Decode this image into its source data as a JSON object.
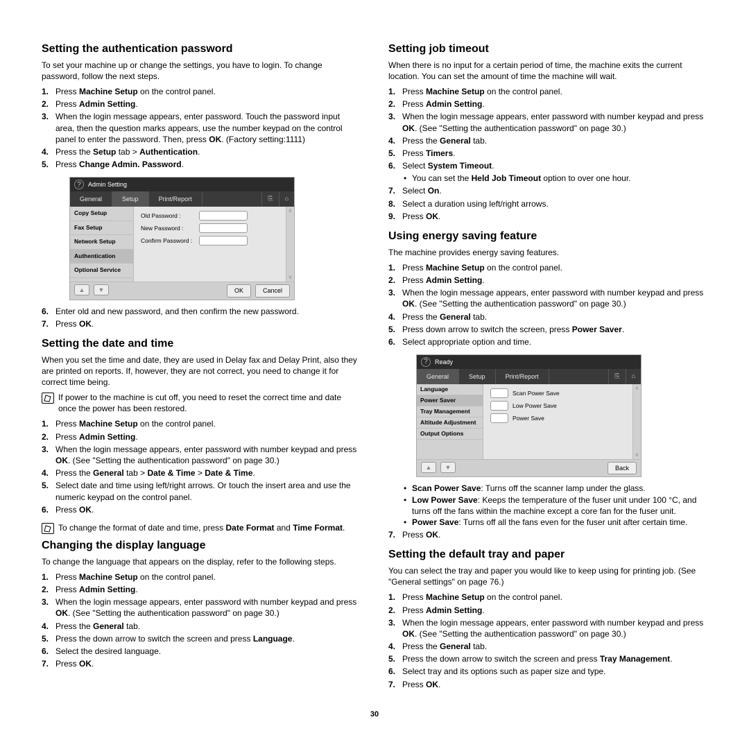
{
  "pageNumber": "30",
  "left": {
    "s1": {
      "title": "Setting the authentication password",
      "intro": "To set your machine up or change the settings, you have to login. To change password, follow the next steps.",
      "items": [
        {
          "n": "1.",
          "html": "Press <b>Machine Setup</b> on the control panel."
        },
        {
          "n": "2.",
          "html": "Press <b>Admin Setting</b>."
        },
        {
          "n": "3.",
          "html": "When the login message appears, enter password. Touch the password input area, then the question marks appears, use the number keypad on the control panel to enter the password. Then, press <b>OK</b>. (Factory setting:1111)"
        },
        {
          "n": "4.",
          "html": "Press the <b>Setup</b> tab > <b>Authentication</b>."
        },
        {
          "n": "5.",
          "html": "Press <b>Change Admin. Password</b>."
        }
      ],
      "after": [
        {
          "n": "6.",
          "html": "Enter old and new password, and then confirm the new password."
        },
        {
          "n": "7.",
          "html": "Press <b>OK</b>."
        }
      ]
    },
    "s2": {
      "title": "Setting the date and time",
      "intro": "When you set the time and date, they are used in Delay fax and Delay Print, also they are printed on reports. If, however, they are not correct, you need to change it for correct time being.",
      "note1": "If power to the machine is cut off, you need to reset the correct time and date once the power has been restored.",
      "items": [
        {
          "n": "1.",
          "html": "Press <b>Machine Setup</b> on the control panel."
        },
        {
          "n": "2.",
          "html": "Press <b>Admin Setting</b>."
        },
        {
          "n": "3.",
          "html": "When the login message appears, enter password with number keypad and press <b>OK</b>. (See \"Setting the authentication password\" on page 30.)"
        },
        {
          "n": "4.",
          "html": "Press the <b>General</b> tab > <b>Date & Time</b> > <b>Date & Time</b>."
        },
        {
          "n": "5.",
          "html": "Select date and time using left/right arrows. Or touch the insert area and use the numeric keypad on the control panel."
        },
        {
          "n": "6.",
          "html": "Press <b>OK</b>."
        }
      ],
      "note2": "To change the format of date and time, press <b>Date Format</b> and <b>Time Format</b>."
    },
    "s3": {
      "title": "Changing the display language",
      "intro": "To change the language that appears on the display, refer to the following steps.",
      "items": [
        {
          "n": "1.",
          "html": "Press <b>Machine Setup</b> on the control panel."
        },
        {
          "n": "2.",
          "html": "Press <b>Admin Setting</b>."
        },
        {
          "n": "3.",
          "html": "When the login message appears, enter password with number keypad and press <b>OK</b>. (See \"Setting the authentication password\" on page 30.)"
        },
        {
          "n": "4.",
          "html": "Press the <b>General</b> tab."
        },
        {
          "n": "5.",
          "html": "Press the down arrow to switch the screen and press <b>Language</b>."
        },
        {
          "n": "6.",
          "html": "Select the desired language."
        },
        {
          "n": "7.",
          "html": "Press <b>OK</b>."
        }
      ]
    }
  },
  "right": {
    "s1": {
      "title": "Setting job timeout",
      "intro": "When there is no input for a certain period of time, the machine exits the current location. You can set the amount of time the machine will wait.",
      "items": [
        {
          "n": "1.",
          "html": "Press <b>Machine Setup</b> on the control panel."
        },
        {
          "n": "2.",
          "html": "Press <b>Admin Setting</b>."
        },
        {
          "n": "3.",
          "html": "When the login message appears, enter password with number keypad and press <b>OK</b>. (See \"Setting the authentication password\" on page 30.)"
        },
        {
          "n": "4.",
          "html": "Press the <b>General</b> tab."
        },
        {
          "n": "5.",
          "html": "Press <b>Timers</b>."
        },
        {
          "n": "6.",
          "html": "Select <b>System Timeout</b>.",
          "sub": [
            "You can set the <b>Held Job Timeout</b> option to over one hour."
          ]
        },
        {
          "n": "7.",
          "html": "Select <b>On</b>."
        },
        {
          "n": "8.",
          "html": "Select a duration using left/right arrows."
        },
        {
          "n": "9.",
          "html": "Press <b>OK</b>."
        }
      ]
    },
    "s2": {
      "title": "Using energy saving feature",
      "intro": "The machine provides energy saving features.",
      "items": [
        {
          "n": "1.",
          "html": "Press <b>Machine Setup</b> on the control panel."
        },
        {
          "n": "2.",
          "html": "Press <b>Admin Setting</b>."
        },
        {
          "n": "3.",
          "html": "When the login message appears, enter password with number keypad and press <b>OK</b>. (See \"Setting the authentication password\" on page 30.)"
        },
        {
          "n": "4.",
          "html": "Press the <b>General</b> tab."
        },
        {
          "n": "5.",
          "html": "Press down arrow to switch the screen, press <b>Power Saver</b>."
        },
        {
          "n": "6.",
          "html": "Select appropriate option and time."
        }
      ],
      "bullets": [
        "<b>Scan Power Save</b>: Turns off the scanner lamp under the glass.",
        "<b>Low Power Save</b>: Keeps the temperature of the fuser unit under 100 °C, and turns off the fans within the machine except a core fan for the fuser unit.",
        "<b>Power Save</b>: Turns off all the fans even for the fuser unit after certain time."
      ],
      "after": [
        {
          "n": "7.",
          "html": "Press <b>OK</b>."
        }
      ]
    },
    "s3": {
      "title": "Setting the default tray and paper",
      "intro": "You can select the tray and paper you would like to keep using for printing job. (See \"General settings\" on page 76.)",
      "items": [
        {
          "n": "1.",
          "html": "Press <b>Machine Setup</b> on the control panel."
        },
        {
          "n": "2.",
          "html": "Press <b>Admin Setting</b>."
        },
        {
          "n": "3.",
          "html": "When the login message appears, enter password with number keypad and press <b>OK</b>. (See \"Setting the authentication password\" on page 30.)"
        },
        {
          "n": "4.",
          "html": "Press the <b>General</b> tab."
        },
        {
          "n": "5.",
          "html": "Press the down arrow to switch the screen and press <b>Tray Management</b>."
        },
        {
          "n": "6.",
          "html": "Select tray and its options such as paper size and type."
        },
        {
          "n": "7.",
          "html": "Press <b>OK</b>."
        }
      ]
    }
  },
  "ss1": {
    "title": "Admin Setting",
    "tabs": [
      "General",
      "Setup",
      "Print/Report"
    ],
    "activeTab": 1,
    "side": [
      "Copy Setup",
      "Fax Setup",
      "Network Setup",
      "Authentication",
      "Optional Service"
    ],
    "sideSel": 3,
    "fields": [
      "Old Password",
      "New Password",
      "Confirm Password"
    ],
    "btns": [
      "OK",
      "Cancel"
    ]
  },
  "ss2": {
    "title": "Ready",
    "tabs": [
      "General",
      "Setup",
      "Print/Report"
    ],
    "activeTab": 0,
    "side": [
      "Language",
      "Power Saver",
      "Tray Management",
      "Altitude Adjustment",
      "Output Options"
    ],
    "sideSel": 1,
    "rows": [
      "Scan Power Save",
      "Low Power Save",
      "Power Save"
    ],
    "btns": [
      "Back"
    ]
  }
}
